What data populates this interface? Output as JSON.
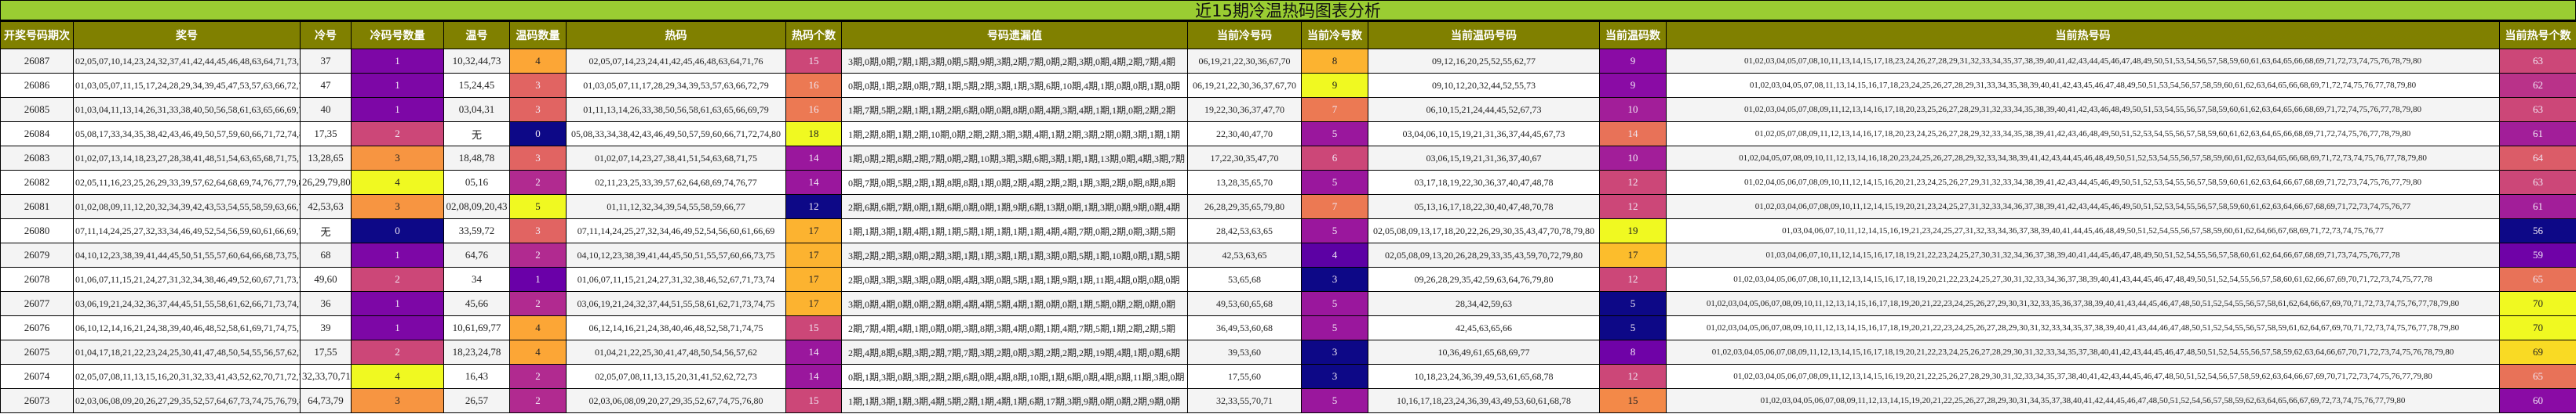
{
  "title": "近15期冷温热码图表分析",
  "headers": [
    "开奖号码期次",
    "奖号",
    "冷号",
    "冷码号数量",
    "温号",
    "温码数量",
    "热码",
    "热码个数",
    "号码遗漏值",
    "当前冷号码",
    "当前冷号数",
    "当前温码号码",
    "当前温码数",
    "当前热号码",
    "当前热号个数"
  ],
  "colors": {
    "title_bar": "#9acd32",
    "header_bg": "#808000",
    "row_alt": "#f4f4f4",
    "colormap": "plasma"
  },
  "rows": [
    {
      "period": "26087",
      "numbers": "02,05,07,10,14,23,24,32,37,41,42,44,45,46,48,63,64,71,73,76",
      "cold": "37",
      "cold_count": 1,
      "warm": "10,32,44,73",
      "warm_count": 4,
      "hot": "02,05,07,14,23,24,41,42,45,46,48,63,64,71,76",
      "hot_count": 15,
      "miss": "3期,0期,0期,7期,1期,3期,0期,5期,9期,3期,2期,7期,0期,2期,3期,0期,4期,2期,7期,4期",
      "cur_cold": "06,19,21,22,30,36,67,70",
      "cur_cold_count": 8,
      "cur_warm": "09,12,16,20,25,52,55,62,77",
      "cur_warm_count": 9,
      "cur_hot": "01,02,03,04,05,07,08,10,11,13,14,15,17,18,23,24,26,27,28,29,31,32,33,34,35,37,38,39,40,41,42,43,44,45,46,47,48,49,50,51,53,54,56,57,58,59,60,61,63,64,65,66,68,69,71,72,73,74,75,76,78,79,80",
      "cur_hot_count": 63
    },
    {
      "period": "26086",
      "numbers": "01,03,05,07,11,15,17,24,28,29,34,39,45,47,53,57,63,66,72,79",
      "cold": "47",
      "cold_count": 1,
      "warm": "15,24,45",
      "warm_count": 3,
      "hot": "01,03,05,07,11,17,28,29,34,39,53,57,63,66,72,79",
      "hot_count": 16,
      "miss": "0期,0期,1期,2期,0期,7期,1期,5期,2期,3期,1期,3期,6期,10期,4期,1期,0期,0期,1期,0期",
      "cur_cold": "06,19,21,22,30,36,37,67,70",
      "cur_cold_count": 9,
      "cur_warm": "09,10,12,20,32,44,52,55,73",
      "cur_warm_count": 9,
      "cur_hot": "01,02,03,04,05,07,08,11,13,14,15,16,17,18,23,24,25,26,27,28,29,31,33,34,35,38,39,40,41,42,43,45,46,47,48,49,50,51,53,54,56,57,58,59,60,61,62,63,64,65,66,68,69,71,72,74,75,76,77,78,79,80",
      "cur_hot_count": 62
    },
    {
      "period": "26085",
      "numbers": "01,03,04,11,13,14,26,31,33,38,40,50,56,58,61,63,65,66,69,79",
      "cold": "40",
      "cold_count": 1,
      "warm": "03,04,31",
      "warm_count": 3,
      "hot": "01,11,13,14,26,33,38,50,56,58,61,63,65,66,69,79",
      "hot_count": 16,
      "miss": "1期,7期,5期,2期,1期,1期,2期,6期,0期,0期,8期,0期,4期,3期,4期,1期,1期,0期,2期,2期",
      "cur_cold": "19,22,30,36,37,47,70",
      "cur_cold_count": 7,
      "cur_warm": "06,10,15,21,24,44,45,52,67,73",
      "cur_warm_count": 10,
      "cur_hot": "01,02,03,04,05,07,08,09,11,12,13,14,16,17,18,20,23,25,26,27,28,29,31,32,33,34,35,38,39,40,41,42,43,46,48,49,50,51,53,54,55,56,57,58,59,60,61,62,63,64,65,66,68,69,71,72,74,75,76,77,78,79,80",
      "cur_hot_count": 63
    },
    {
      "period": "26084",
      "numbers": "05,08,17,33,34,35,38,42,43,46,49,50,57,59,60,66,71,72,74,80",
      "cold": "17,35",
      "cold_count": 2,
      "warm": "无",
      "warm_count": 0,
      "hot": "05,08,33,34,38,42,43,46,49,50,57,59,60,66,71,72,74,80",
      "hot_count": 18,
      "miss": "1期,2期,8期,1期,2期,10期,0期,2期,2期,3期,3期,4期,1期,2期,3期,2期,0期,3期,1期,1期",
      "cur_cold": "22,30,40,47,70",
      "cur_cold_count": 5,
      "cur_warm": "03,04,06,10,15,19,21,31,36,37,44,45,67,73",
      "cur_warm_count": 14,
      "cur_hot": "01,02,05,07,08,09,11,12,13,14,16,17,18,20,23,24,25,26,27,28,29,32,33,34,35,38,39,41,42,43,46,48,49,50,51,52,53,54,55,56,57,58,59,60,61,62,63,64,65,66,68,69,71,72,74,75,76,77,78,79,80",
      "cur_hot_count": 61
    },
    {
      "period": "26083",
      "numbers": "01,02,07,13,14,18,23,27,28,38,41,48,51,54,63,65,68,71,75,78",
      "cold": "13,28,65",
      "cold_count": 3,
      "warm": "18,48,78",
      "warm_count": 3,
      "hot": "01,02,07,14,23,27,38,41,51,54,63,68,71,75",
      "hot_count": 14,
      "miss": "1期,0期,2期,8期,2期,7期,0期,2期,10期,3期,3期,6期,3期,1期,1期,13期,0期,4期,3期,7期",
      "cur_cold": "17,22,30,35,47,70",
      "cur_cold_count": 6,
      "cur_warm": "03,06,15,19,21,31,36,37,40,67",
      "cur_warm_count": 10,
      "cur_hot": "01,02,04,05,07,08,09,10,11,12,13,14,16,18,20,23,24,25,26,27,28,29,32,33,34,38,39,41,42,43,44,45,46,48,49,50,51,52,53,54,55,56,57,58,59,60,61,62,63,64,65,66,68,69,71,72,73,74,75,76,77,78,79,80",
      "cur_hot_count": 64
    },
    {
      "period": "26082",
      "numbers": "02,05,11,16,23,25,26,29,33,39,57,62,64,68,69,74,76,77,79,80",
      "cold": "26,29,79,80",
      "cold_count": 4,
      "warm": "05,16",
      "warm_count": 2,
      "hot": "02,11,23,25,33,39,57,62,64,68,69,74,76,77",
      "hot_count": 14,
      "miss": "0期,7期,0期,5期,2期,1期,8期,8期,1期,0期,2期,4期,2期,2期,1期,3期,2期,0期,8期,8期",
      "cur_cold": "13,28,35,65,70",
      "cur_cold_count": 5,
      "cur_warm": "03,17,18,19,22,30,36,37,40,47,48,78",
      "cur_warm_count": 12,
      "cur_hot": "01,02,04,05,06,07,08,09,10,11,12,14,15,16,20,21,23,24,25,26,27,29,31,32,33,34,38,39,41,42,43,44,45,46,49,50,51,52,53,54,55,56,57,58,59,60,61,62,63,64,66,67,68,69,71,72,73,74,75,76,77,79,80",
      "cur_hot_count": 63
    },
    {
      "period": "26081",
      "numbers": "01,02,08,09,11,12,20,32,34,39,42,43,53,54,55,58,59,63,66,77",
      "cold": "42,53,63",
      "cold_count": 3,
      "warm": "02,08,09,20,43",
      "warm_count": 5,
      "hot": "01,11,12,32,34,39,54,55,58,59,66,77",
      "hot_count": 12,
      "miss": "2期,6期,6期,7期,0期,1期,6期,0期,0期,1期,9期,6期,13期,0期,1期,3期,0期,9期,0期,4期",
      "cur_cold": "26,28,29,35,65,79,80",
      "cur_cold_count": 7,
      "cur_warm": "05,13,16,17,18,22,30,40,47,48,70,78",
      "cur_warm_count": 12,
      "cur_hot": "01,02,03,04,06,07,08,09,10,11,12,14,15,19,20,21,23,24,25,27,31,32,33,34,36,37,38,39,41,42,43,44,45,46,49,50,51,52,53,54,55,56,57,58,59,60,61,62,63,64,66,67,68,69,71,72,73,74,75,76,77",
      "cur_hot_count": 61
    },
    {
      "period": "26080",
      "numbers": "07,11,14,24,25,27,32,33,34,46,49,52,54,56,59,60,61,66,69,72",
      "cold": "无",
      "cold_count": 0,
      "warm": "33,59,72",
      "warm_count": 3,
      "hot": "07,11,14,24,25,27,32,34,46,49,52,54,56,60,61,66,69",
      "hot_count": 17,
      "miss": "1期,1期,3期,1期,4期,1期,1期,5期,1期,1期,1期,1期,4期,4期,7期,0期,2期,0期,3期,5期",
      "cur_cold": "28,42,53,63,65",
      "cur_cold_count": 5,
      "cur_warm": "02,05,08,09,13,17,18,20,22,26,29,30,35,43,47,70,78,79,80",
      "cur_warm_count": 19,
      "cur_hot": "01,03,04,06,07,10,11,12,14,15,16,19,21,23,24,25,27,31,32,33,34,36,37,38,39,40,41,44,45,46,48,49,50,51,52,54,55,56,57,58,59,60,61,62,64,66,67,68,69,71,72,73,74,75,76,77",
      "cur_hot_count": 56
    },
    {
      "period": "26079",
      "numbers": "04,10,12,23,38,39,41,44,45,50,51,55,57,60,64,66,68,73,75,76",
      "cold": "68",
      "cold_count": 1,
      "warm": "64,76",
      "warm_count": 2,
      "hot": "04,10,12,23,38,39,41,44,45,50,51,55,57,60,66,73,75",
      "hot_count": 17,
      "miss": "3期,2期,2期,3期,0期,2期,3期,1期,1期,3期,1期,1期,3期,0期,5期,1期,10期,0期,1期,5期",
      "cur_cold": "42,53,63,65",
      "cur_cold_count": 4,
      "cur_warm": "02,05,08,09,13,20,26,28,29,33,35,43,59,70,72,79,80",
      "cur_warm_count": 17,
      "cur_hot": "01,03,04,06,07,10,11,12,14,15,16,17,18,19,21,22,23,24,25,27,30,31,32,34,36,37,38,39,40,41,44,45,46,47,48,49,50,51,52,54,55,56,57,58,60,61,62,64,66,67,68,69,71,73,74,75,76,77,78",
      "cur_hot_count": 59
    },
    {
      "period": "26078",
      "numbers": "01,06,07,11,15,21,24,27,31,32,34,38,46,49,52,60,67,71,73,74",
      "cold": "49,60",
      "cold_count": 2,
      "warm": "34",
      "warm_count": 1,
      "hot": "01,06,07,11,15,21,24,27,31,32,38,46,52,67,71,73,74",
      "hot_count": 17,
      "miss": "2期,0期,3期,3期,3期,0期,0期,4期,3期,0期,5期,1期,1期,9期,1期,11期,4期,0期,0期,0期",
      "cur_cold": "53,65,68",
      "cur_cold_count": 3,
      "cur_warm": "09,26,28,29,35,42,59,63,64,76,79,80",
      "cur_warm_count": 12,
      "cur_hot": "01,02,03,04,05,06,07,08,10,11,12,13,14,15,16,17,18,19,20,21,22,23,24,25,27,30,31,32,33,34,36,37,38,39,40,41,43,44,45,46,47,48,49,50,51,52,54,55,56,57,58,60,61,62,66,67,69,70,71,72,73,74,75,77,78",
      "cur_hot_count": 65
    },
    {
      "period": "26077",
      "numbers": "03,06,19,21,24,32,36,37,44,45,51,55,58,61,62,66,71,73,74,75",
      "cold": "36",
      "cold_count": 1,
      "warm": "45,66",
      "warm_count": 2,
      "hot": "03,06,19,21,24,32,37,44,51,55,58,61,62,71,73,74,75",
      "hot_count": 17,
      "miss": "3期,0期,4期,0期,0期,2期,8期,4期,4期,5期,4期,1期,0期,0期,1期,5期,0期,2期,0期,0期",
      "cur_cold": "49,53,60,65,68",
      "cur_cold_count": 5,
      "cur_warm": "28,34,42,59,63",
      "cur_warm_count": 5,
      "cur_hot": "01,02,03,04,05,06,07,08,09,10,11,12,13,14,15,16,17,18,19,20,21,22,23,24,25,26,27,29,30,31,32,33,35,36,37,38,39,40,41,43,44,45,46,47,48,50,51,52,54,55,56,57,58,61,62,64,66,67,69,70,71,72,73,74,75,76,77,78,79,80",
      "cur_hot_count": 70
    },
    {
      "period": "26076",
      "numbers": "06,10,12,14,16,21,24,38,39,40,46,48,52,58,61,69,71,74,75,77",
      "cold": "39",
      "cold_count": 1,
      "warm": "10,61,69,77",
      "warm_count": 4,
      "hot": "06,12,14,16,21,24,38,40,46,48,52,58,71,74,75",
      "hot_count": 15,
      "miss": "2期,7期,4期,4期,1期,0期,0期,3期,8期,3期,4期,0期,1期,4期,7期,5期,1期,2期,2期,5期",
      "cur_cold": "36,49,53,60,68",
      "cur_cold_count": 5,
      "cur_warm": "42,45,63,65,66",
      "cur_warm_count": 5,
      "cur_hot": "01,02,03,04,05,06,07,08,09,10,11,12,13,14,15,16,17,18,19,20,21,22,23,24,25,26,27,28,29,30,31,32,33,34,35,37,38,39,40,41,43,44,46,47,48,50,51,52,54,55,56,57,58,59,61,62,64,67,69,70,71,72,73,74,75,76,77,78,79,80",
      "cur_hot_count": 70
    },
    {
      "period": "26075",
      "numbers": "01,04,17,18,21,22,23,24,25,30,41,47,48,50,54,55,56,57,62,78",
      "cold": "17,55",
      "cold_count": 2,
      "warm": "18,23,24,78",
      "warm_count": 4,
      "hot": "01,04,21,22,25,30,41,47,48,50,54,56,57,62",
      "hot_count": 14,
      "miss": "2期,4期,8期,6期,3期,2期,7期,7期,3期,2期,0期,3期,2期,2期,2期,19期,4期,1期,0期,6期",
      "cur_cold": "39,53,60",
      "cur_cold_count": 3,
      "cur_warm": "10,36,49,61,65,68,69,77",
      "cur_warm_count": 8,
      "cur_hot": "01,02,03,04,05,06,07,08,09,11,12,13,14,15,16,17,18,19,20,21,22,23,24,25,26,27,28,29,30,31,32,33,34,35,37,38,40,41,42,43,44,45,46,47,48,50,51,52,54,55,56,57,58,59,62,63,64,66,67,70,71,72,73,74,75,76,78,79,80",
      "cur_hot_count": 69
    },
    {
      "period": "26074",
      "numbers": "02,05,07,08,11,13,15,16,20,31,32,33,41,43,52,62,70,71,72,73",
      "cold": "32,33,70,71",
      "cold_count": 4,
      "warm": "16,43",
      "warm_count": 2,
      "hot": "02,05,07,08,11,13,15,20,31,41,52,62,72,73",
      "hot_count": 14,
      "miss": "0期,1期,3期,0期,3期,2期,2期,6期,0期,4期,8期,10期,1期,6期,0期,4期,8期,11期,3期,0期",
      "cur_cold": "17,55,60",
      "cur_cold_count": 3,
      "cur_warm": "10,18,23,24,36,39,49,53,61,65,68,78",
      "cur_warm_count": 12,
      "cur_hot": "01,02,03,04,05,06,07,08,09,11,12,13,14,15,16,19,20,21,22,25,26,27,28,29,30,31,32,33,34,35,37,38,40,41,42,43,44,45,46,47,48,50,51,52,54,56,57,58,59,62,63,64,66,67,69,70,71,72,73,74,75,76,77,79,80",
      "cur_hot_count": 65
    },
    {
      "period": "26073",
      "numbers": "02,03,06,08,09,20,26,27,29,35,52,57,64,67,73,74,75,76,79,80",
      "cold": "64,73,79",
      "cold_count": 3,
      "warm": "26,57",
      "warm_count": 2,
      "hot": "02,03,06,08,09,20,27,29,35,52,67,74,75,76,80",
      "hot_count": 15,
      "miss": "1期,1期,3期,1期,3期,4期,5期,2期,1期,4期,1期,6期,17期,3期,9期,0期,0期,2期,9期,0期",
      "cur_cold": "32,33,55,70,71",
      "cur_cold_count": 5,
      "cur_warm": "10,16,17,18,23,24,36,39,43,49,53,60,61,68,78",
      "cur_warm_count": 15,
      "cur_hot": "01,02,03,04,05,06,07,08,09,11,12,13,14,15,19,20,21,22,25,26,27,28,29,30,31,34,35,37,38,40,41,42,44,45,46,47,48,50,51,52,54,56,57,58,59,62,63,64,65,66,67,69,72,73,74,75,76,77,79,80",
      "cur_hot_count": 60
    }
  ]
}
